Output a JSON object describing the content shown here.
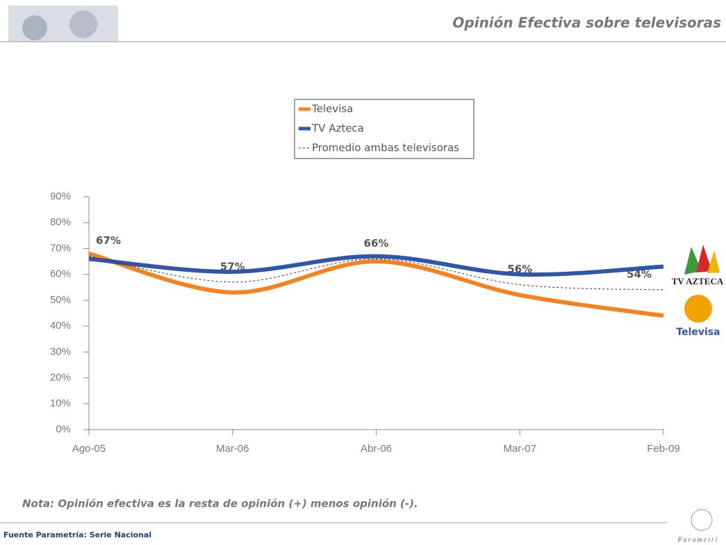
{
  "header": {
    "title": "Opinión Efectiva sobre televisoras"
  },
  "chart_data": {
    "type": "line",
    "categories": [
      "Ago-05",
      "Mar-06",
      "Abr-06",
      "Mar-07",
      "Feb-09"
    ],
    "series": [
      {
        "name": "Televisa",
        "color": "#f5821f",
        "values": [
          68,
          53,
          65,
          52,
          44
        ]
      },
      {
        "name": "TV Azteca",
        "color": "#2f56a8",
        "values": [
          66,
          61,
          67,
          60,
          63
        ]
      },
      {
        "name": "Promedio ambas televisoras",
        "color": "#333333",
        "dashed": true,
        "values": [
          67,
          57,
          66,
          56,
          54
        ],
        "value_labels": [
          "67%",
          "57%",
          "66%",
          "56%",
          "54%"
        ]
      }
    ],
    "ylim": [
      0,
      90
    ],
    "yticks": [
      {
        "value": 0,
        "label": "0%"
      },
      {
        "value": 10,
        "label": "10%"
      },
      {
        "value": 20,
        "label": "20%"
      },
      {
        "value": 30,
        "label": "30%"
      },
      {
        "value": 40,
        "label": "40%"
      },
      {
        "value": 50,
        "label": "50%"
      },
      {
        "value": 60,
        "label": "60%"
      },
      {
        "value": 70,
        "label": "70%"
      },
      {
        "value": 80,
        "label": "80%"
      },
      {
        "value": 90,
        "label": "90%"
      }
    ],
    "grid": false
  },
  "logos": {
    "tv_azteca": "TV AZTECA",
    "televisa": "Televisa",
    "parametria": "Parametri"
  },
  "note": "Nota: Opinión efectiva es la resta de opinión (+) menos opinión (-).",
  "source": "Fuente Parametría: Serie Nacional"
}
